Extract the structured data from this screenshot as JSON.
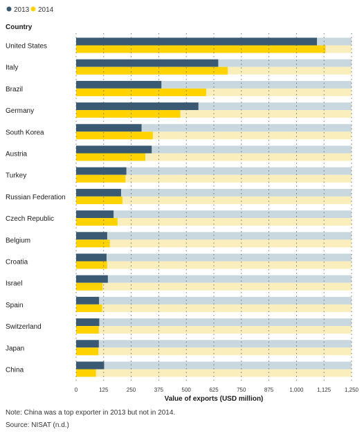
{
  "chart_data": {
    "type": "bar",
    "orientation": "horizontal",
    "category_header": "Country",
    "categories": [
      "United States",
      "Italy",
      "Brazil",
      "Germany",
      "South Korea",
      "Austria",
      "Turkey",
      "Russian Federation",
      "Czech Republic",
      "Belgium",
      "Croatia",
      "Israel",
      "Spain",
      "Switzerland",
      "Japan",
      "China"
    ],
    "series": [
      {
        "name": "2013",
        "color": "#3a5a73",
        "track_color": "#c9d8de",
        "values": [
          1093,
          645,
          387,
          555,
          297,
          343,
          228,
          204,
          170,
          141,
          138,
          144,
          104,
          105,
          103,
          127
        ]
      },
      {
        "name": "2014",
        "color": "#ffd200",
        "track_color": "#fbeebd",
        "values": [
          1132,
          688,
          590,
          473,
          348,
          314,
          224,
          210,
          188,
          153,
          141,
          120,
          118,
          103,
          101,
          90
        ]
      }
    ],
    "xlabel": "Value of exports (USD million)",
    "xlim": [
      0,
      1250
    ],
    "xticks": [
      "0",
      "125",
      "250",
      "375",
      "500",
      "625",
      "750",
      "875",
      "1,000",
      "1,125",
      "1,250"
    ],
    "grid": "dotted vertical",
    "legend_position": "top-left"
  },
  "notes": {
    "note": "Note: China was a top exporter in 2013 but not in 2014.",
    "source": "Source: NISAT (n.d.)"
  }
}
